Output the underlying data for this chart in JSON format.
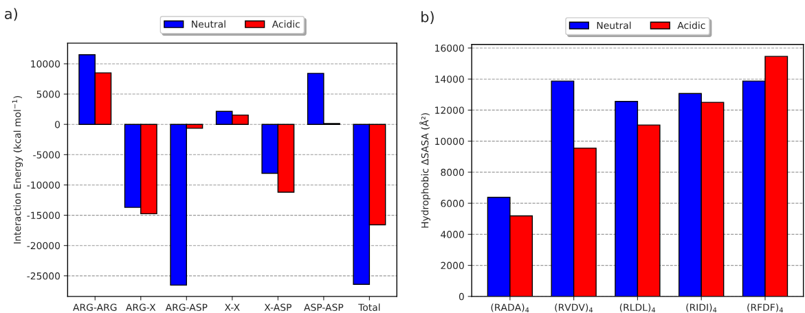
{
  "chart_data": [
    {
      "type": "bar",
      "title": "a)",
      "ylabel": "Interaction Energy (kcal mol$^{−1}$)",
      "categories": [
        "ARG-ARG",
        "ARG-X",
        "ARG-ASP",
        "X-X",
        "X-ASP",
        "ASP-ASP",
        "Total"
      ],
      "series": [
        {
          "name": "Neutral",
          "color": "#0000ff",
          "values": [
            11500,
            -13700,
            -26540,
            2140,
            -8080,
            8420,
            -26400
          ]
        },
        {
          "name": "Acidic",
          "color": "#ff0000",
          "values": [
            8500,
            -14750,
            -640,
            1540,
            -11200,
            130,
            -16580
          ]
        }
      ],
      "ylim": [
        -28400,
        13400
      ],
      "yticks": [
        -25000,
        -20000,
        -15000,
        -10000,
        -5000,
        0,
        5000,
        10000
      ],
      "grid": "y",
      "legend": "top"
    },
    {
      "type": "bar",
      "title": "b)",
      "ylabel": "Hydrophobic ΔSASA (Å²)",
      "categories": [
        "(RADA)$_{4}$",
        "(RVDV)$_{4}$",
        "(RLDL)$_{4}$",
        "(RIDI)$_{4}$",
        "(RFDF)$_{4}$"
      ],
      "series": [
        {
          "name": "Neutral",
          "color": "#0000ff",
          "values": [
            6380,
            13870,
            12560,
            13070,
            13870
          ]
        },
        {
          "name": "Acidic",
          "color": "#ff0000",
          "values": [
            5190,
            9550,
            11040,
            12500,
            15460
          ]
        }
      ],
      "ylim": [
        0,
        16230
      ],
      "yticks": [
        0,
        2000,
        4000,
        6000,
        8000,
        10000,
        12000,
        14000,
        16000
      ],
      "grid": "y",
      "legend": "top"
    }
  ]
}
